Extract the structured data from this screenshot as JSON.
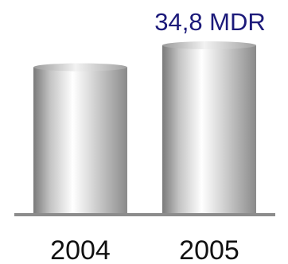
{
  "chart_data": {
    "type": "bar",
    "categories": [
      "2004",
      "2005"
    ],
    "values": [
      30.4,
      34.8
    ],
    "ylim": [
      0,
      34.8
    ],
    "data_labels": [
      "",
      "34,8 MDR"
    ],
    "grid": false,
    "legend": "none",
    "colors": {
      "bar_edge": "#8a8a8a",
      "bar_highlight": "#ffffff",
      "baseline": "#8c8c8c",
      "label": "#1c1a7a",
      "tick_label": "#111111"
    }
  }
}
